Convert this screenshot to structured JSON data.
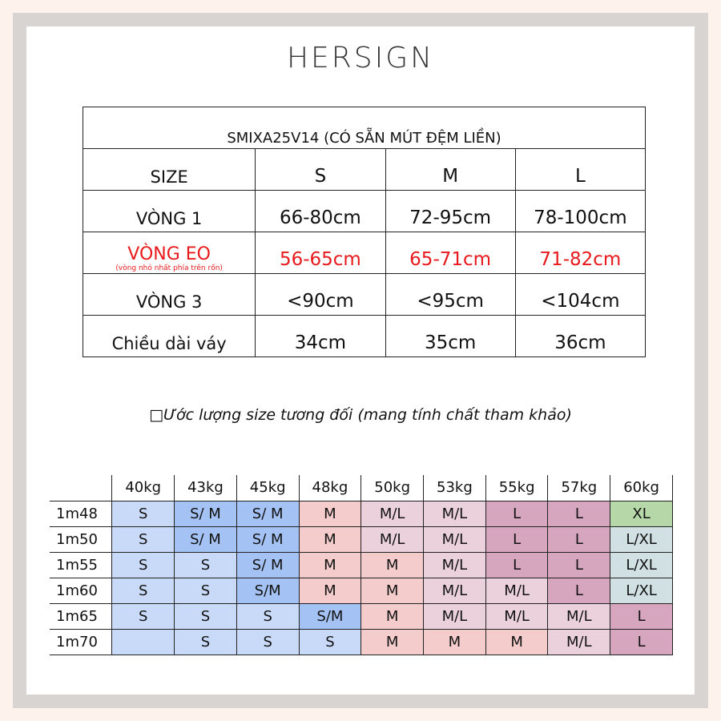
{
  "brand": "HERSIGN",
  "spec_table": {
    "title": "SMIXA25V14 (CÓ SẴN MÚT ĐỆM LIỀN)",
    "header": [
      "SIZE",
      "S",
      "M",
      "L"
    ],
    "rows": [
      {
        "label": "VÒNG 1",
        "note": "",
        "values": [
          "66-80cm",
          "72-95cm",
          "78-100cm"
        ],
        "highlight": false
      },
      {
        "label": "VÒNG EO",
        "note": "(vòng nhỏ nhất phía trên rốn)",
        "values": [
          "56-65cm",
          "65-71cm",
          "71-82cm"
        ],
        "highlight": true
      },
      {
        "label": "VÒNG 3",
        "note": "",
        "values": [
          "<90cm",
          "<95cm",
          "<104cm"
        ],
        "highlight": false
      },
      {
        "label": "Chiều dài váy",
        "note": "",
        "values": [
          "34cm",
          "35cm",
          "36cm"
        ],
        "highlight": false
      }
    ],
    "highlight_color": "#e8191c"
  },
  "estimate_note": "□Ước lượng size tương đối (mang tính chất tham khảo)",
  "estimate_table": {
    "weights": [
      "40kg",
      "43kg",
      "45kg",
      "48kg",
      "50kg",
      "53kg",
      "55kg",
      "57kg",
      "60kg"
    ],
    "rows": [
      {
        "height": "1m48",
        "sizes": [
          "S",
          "S/ M",
          "S/ M",
          "M",
          "M/L",
          "M/L",
          "L",
          "L",
          "XL"
        ]
      },
      {
        "height": "1m50",
        "sizes": [
          "S",
          "S/ M",
          "S/ M",
          "M",
          "M/L",
          "M/L",
          "L",
          "L",
          "L/XL"
        ]
      },
      {
        "height": "1m55",
        "sizes": [
          "S",
          "S",
          "S/ M",
          "M",
          "M",
          "M/L",
          "L",
          "L",
          "L/XL"
        ]
      },
      {
        "height": "1m60",
        "sizes": [
          "S",
          "S",
          "S/M",
          "M",
          "M",
          "M/L",
          "M/L",
          "L",
          "L/XL"
        ]
      },
      {
        "height": "1m65",
        "sizes": [
          "S",
          "S",
          "S",
          "S/M",
          "M",
          "M/L",
          "M/L",
          "M/L",
          "L"
        ]
      },
      {
        "height": "1m70",
        "sizes": [
          "",
          "S",
          "S",
          "S",
          "M",
          "M",
          "M",
          "M/L",
          "L"
        ]
      }
    ],
    "colors": {
      "S": "#c9daf8",
      "S/M": "#a4c2f4",
      "M": "#f4cccc",
      "M/L": "#ead1dc",
      "L": "#d5a6bd",
      "XL": "#b6d7a8",
      "L/XL": "#d0e0e3",
      "empty": "#c9daf8"
    }
  }
}
